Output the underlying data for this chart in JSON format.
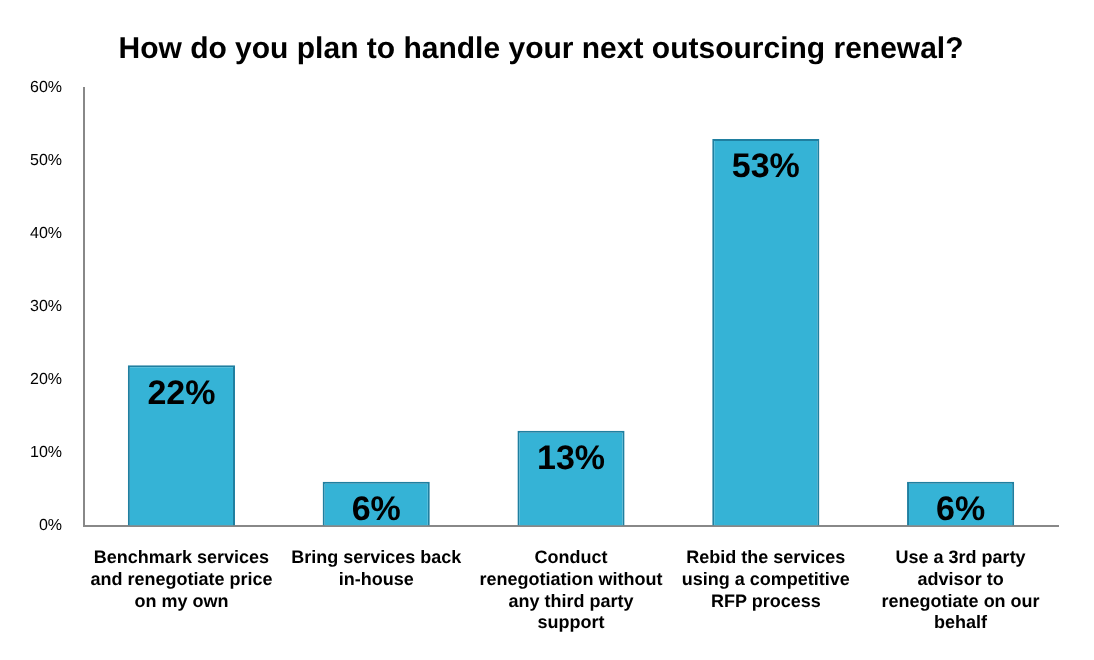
{
  "chart_data": {
    "type": "bar",
    "title": "How do you plan to handle your next outsourcing renewal?",
    "categories": [
      "Benchmark services and renegotiate price on my own",
      "Bring services back in-house",
      "Conduct renegotiation without any third party support",
      "Rebid the services using a competitive RFP process",
      "Use a 3rd party advisor to renegotiate on our behalf"
    ],
    "values": [
      22,
      6,
      13,
      53,
      6
    ],
    "value_labels": [
      "22%",
      "6%",
      "13%",
      "53%",
      "6%"
    ],
    "color": "#35b3d6",
    "ylim": [
      0,
      60
    ],
    "yticks": [
      {
        "value": 0,
        "label": "0%"
      },
      {
        "value": 10,
        "label": "10%"
      },
      {
        "value": 20,
        "label": "20%"
      },
      {
        "value": 30,
        "label": "30%"
      },
      {
        "value": 40,
        "label": "40%"
      },
      {
        "value": 50,
        "label": "50%"
      },
      {
        "value": 60,
        "label": "60%"
      }
    ],
    "grid": false,
    "legend": false
  }
}
